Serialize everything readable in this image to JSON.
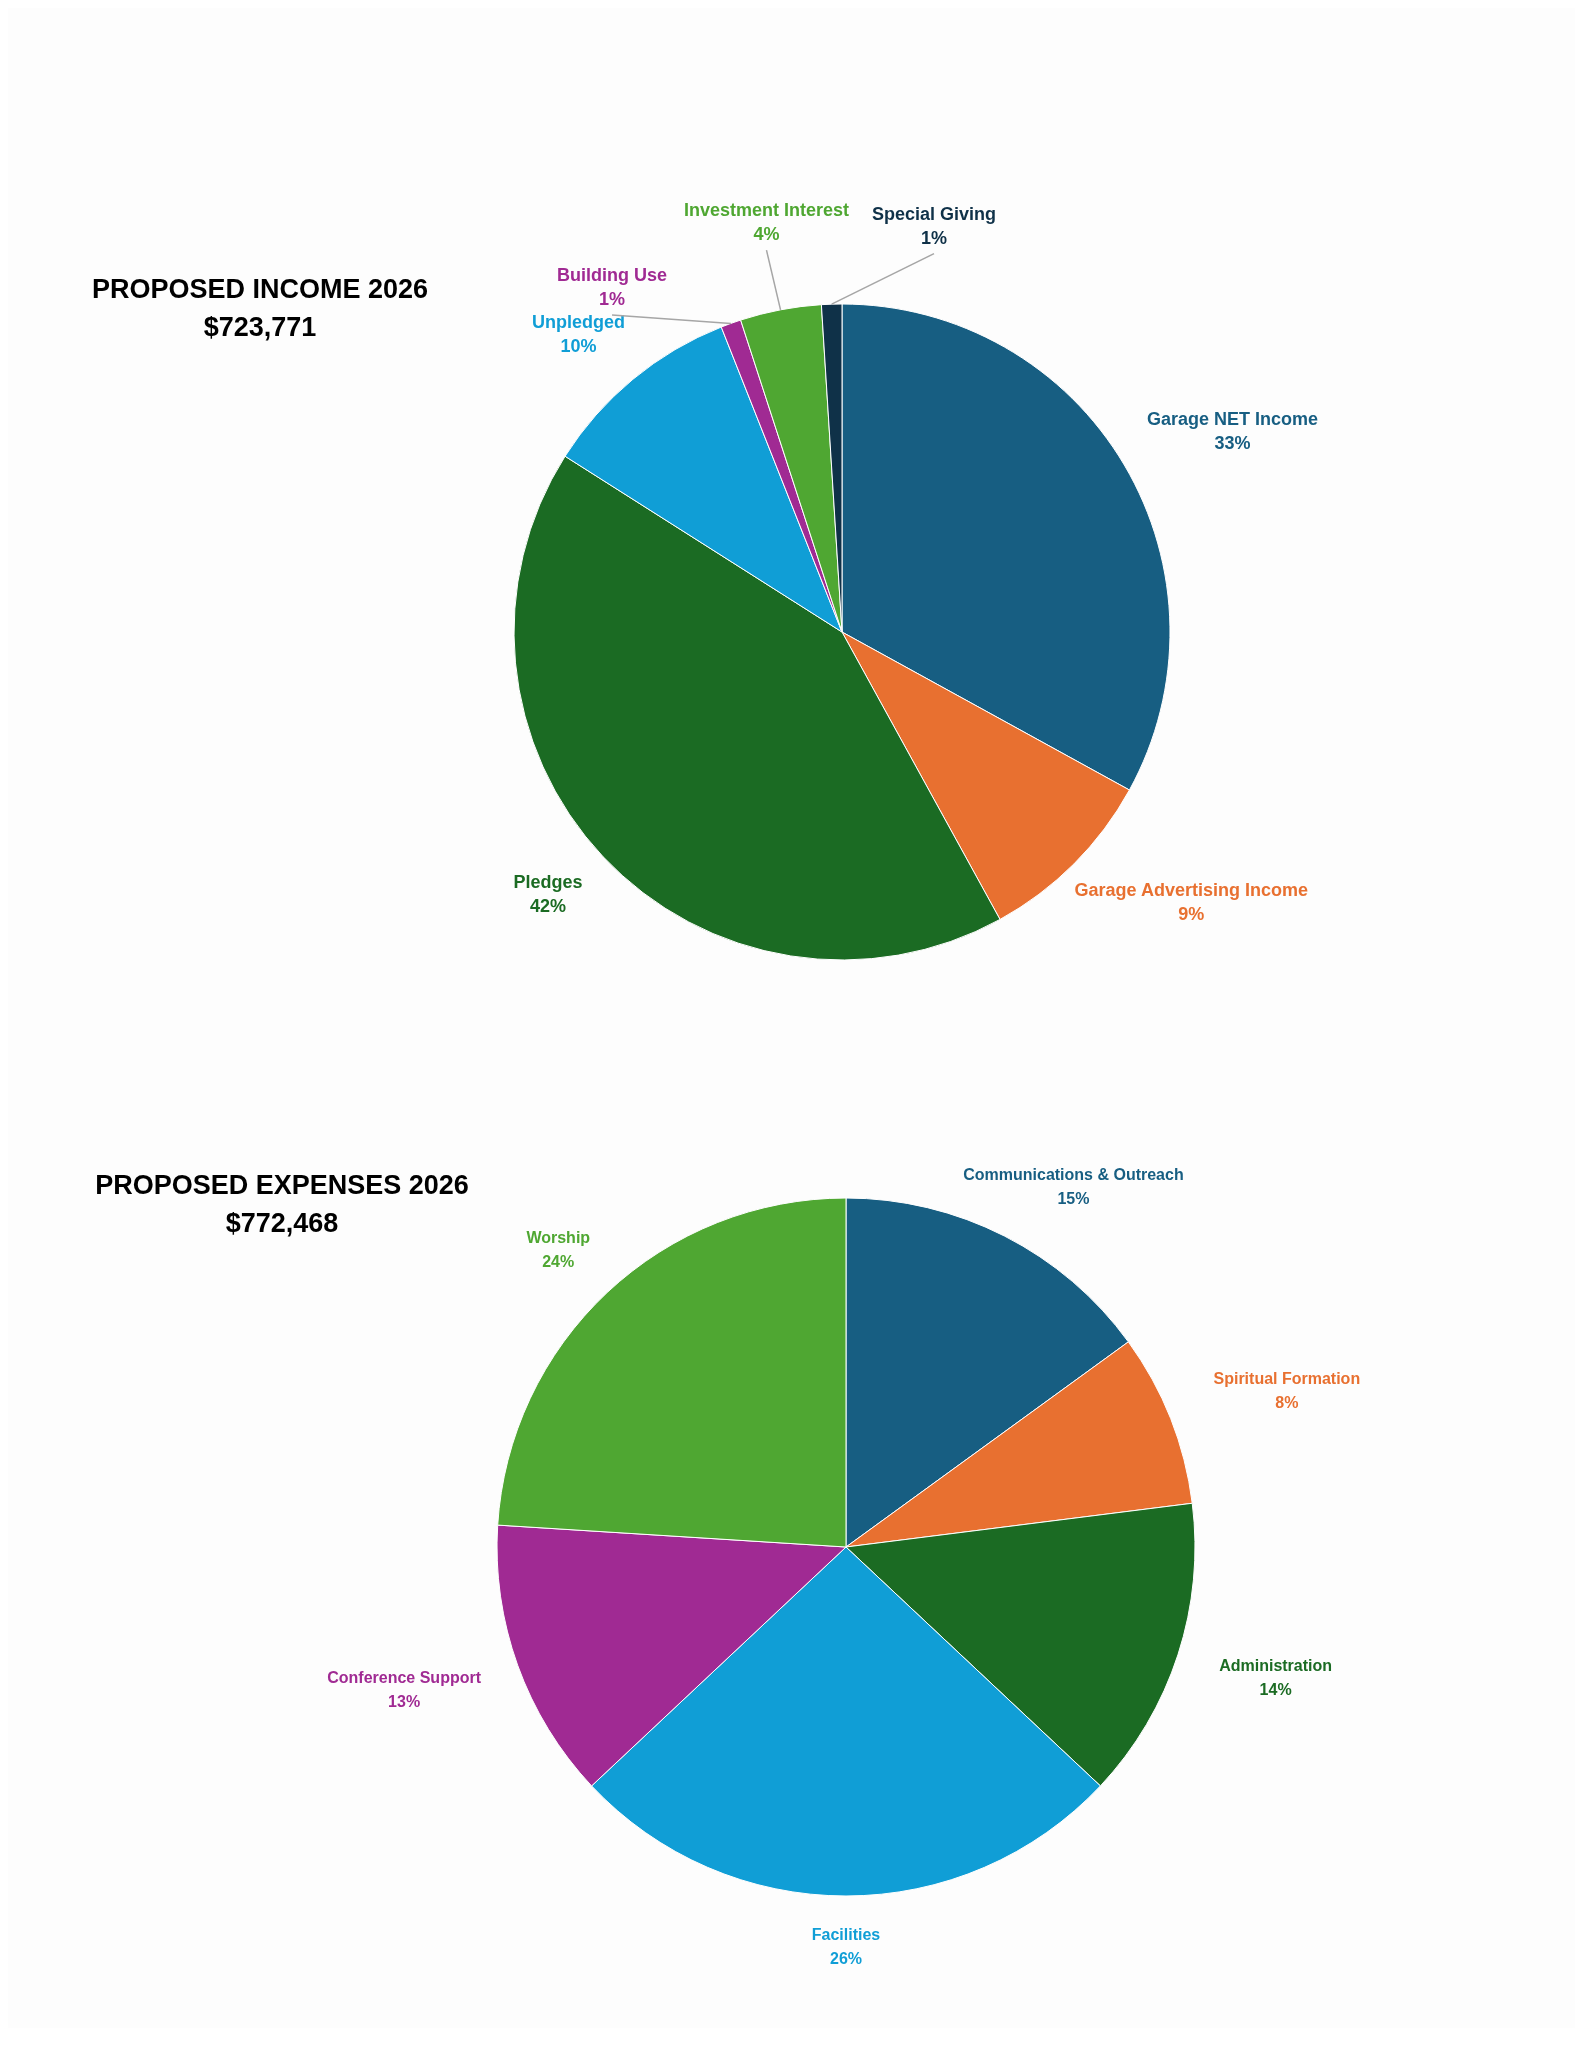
{
  "chart_data": [
    {
      "type": "pie",
      "title": "PROPOSED INCOME 2026",
      "subtitle": "$723,771",
      "categories": [
        "Garage NET Income",
        "Garage Advertising Income",
        "Pledges",
        "Unpledged",
        "Building Use",
        "Investment Interest",
        "Special Giving"
      ],
      "values": [
        33,
        9,
        42,
        10,
        1,
        4,
        1
      ],
      "value_labels": [
        "33%",
        "9%",
        "42%",
        "10%",
        "1%",
        "4%",
        "1%"
      ],
      "colors": [
        "#175e82",
        "#e87030",
        "#1b6b23",
        "#109ed6",
        "#a02a93",
        "#4fa732",
        "#0f3148"
      ],
      "legend": false
    },
    {
      "type": "pie",
      "title": "PROPOSED EXPENSES 2026",
      "subtitle": "$772,468",
      "categories": [
        "Communications & Outreach",
        "Spiritual Formation",
        "Administration",
        "Facilities",
        "Conference Support",
        "Worship"
      ],
      "values": [
        15,
        8,
        14,
        26,
        13,
        24
      ],
      "value_labels": [
        "15%",
        "8%",
        "14%",
        "26%",
        "13%",
        "24%"
      ],
      "colors": [
        "#175e82",
        "#e87030",
        "#1b6b23",
        "#109ed6",
        "#a02a93",
        "#4fa732"
      ],
      "legend": false
    }
  ]
}
